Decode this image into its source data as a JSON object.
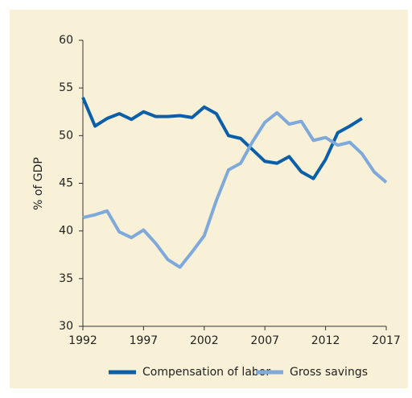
{
  "chart_data": {
    "type": "line",
    "y_label": "% of GDP",
    "x": [
      1992,
      1993,
      1994,
      1995,
      1996,
      1997,
      1998,
      1999,
      2000,
      2001,
      2002,
      2003,
      2004,
      2005,
      2006,
      2007,
      2008,
      2009,
      2010,
      2011,
      2012,
      2013,
      2014,
      2015,
      2016,
      2017
    ],
    "series": [
      {
        "name": "Compensation of labor",
        "color": "#0b5ea8",
        "values": [
          54,
          51,
          51.8,
          52.3,
          51.7,
          52.5,
          52,
          52,
          52.1,
          51.9,
          53,
          52.3,
          50,
          49.7,
          48.5,
          47.3,
          47.1,
          47.8,
          46.2,
          45.5,
          47.5,
          50.3,
          51,
          51.8,
          null,
          null
        ]
      },
      {
        "name": "Gross savings",
        "color": "#7fa9da",
        "values": [
          41.4,
          41.7,
          42.1,
          39.9,
          39.3,
          40.1,
          38.7,
          37,
          36.2,
          37.8,
          39.5,
          43.2,
          46.4,
          47.1,
          49.4,
          51.4,
          52.4,
          51.2,
          51.5,
          49.5,
          49.8,
          49,
          49.3,
          48.1,
          46.2,
          45.1
        ]
      }
    ],
    "xlim": [
      1992,
      2017
    ],
    "xticks": [
      1992,
      1997,
      2002,
      2007,
      2012,
      2017
    ],
    "ylim": [
      30,
      60
    ],
    "yticks": [
      30,
      35,
      40,
      45,
      50,
      55,
      60
    ],
    "grid": false,
    "legend": "bottom"
  }
}
